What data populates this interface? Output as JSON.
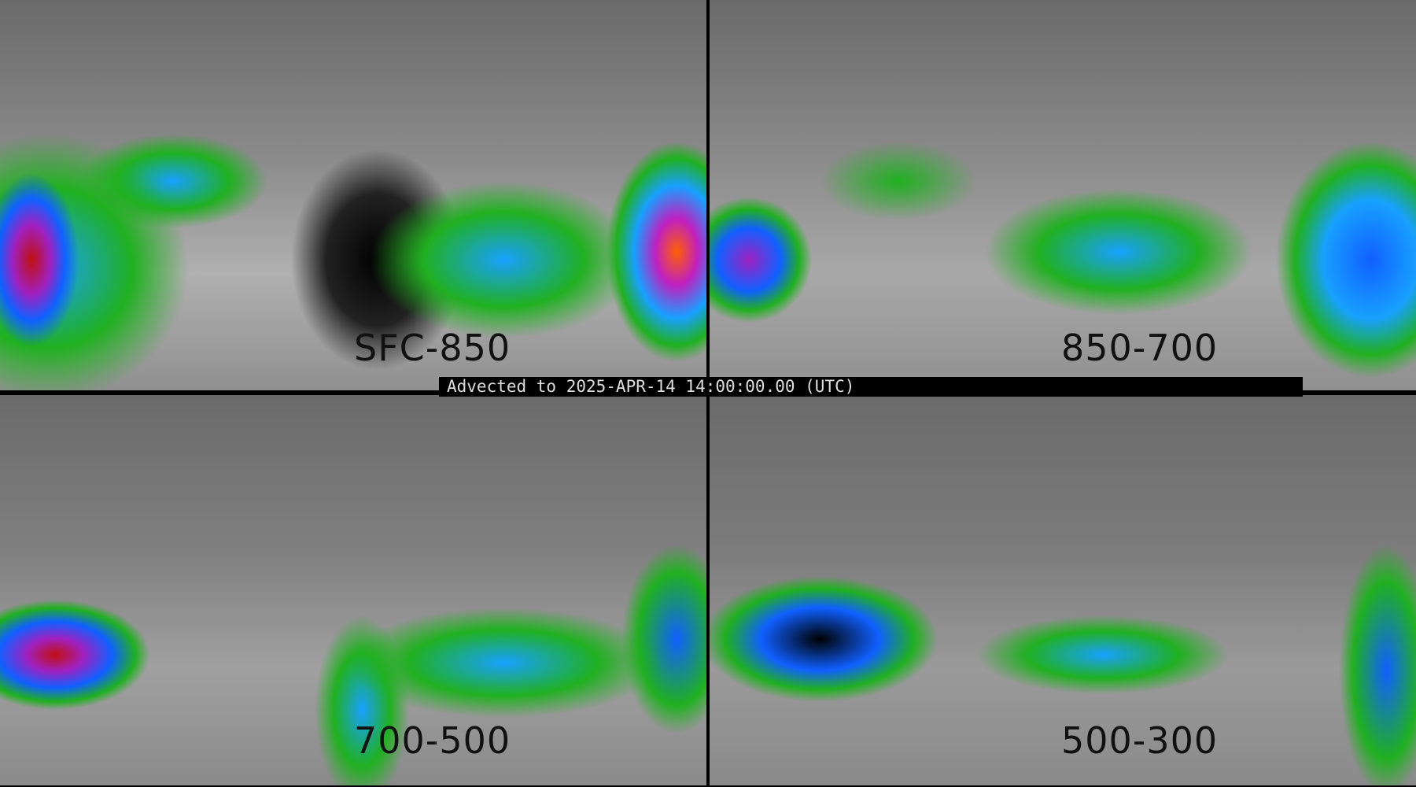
{
  "panels": [
    {
      "label": "SFC-850"
    },
    {
      "label": "850-700"
    },
    {
      "label": "700-500"
    },
    {
      "label": "500-300"
    }
  ],
  "banner": "Advected to 2025-APR-14 14:00:00.00 (UTC)",
  "colors": {
    "background": "#808080",
    "low": "#20b020",
    "mid": "#18a0ff",
    "high": "#a020c0",
    "extreme": "#c01010"
  }
}
